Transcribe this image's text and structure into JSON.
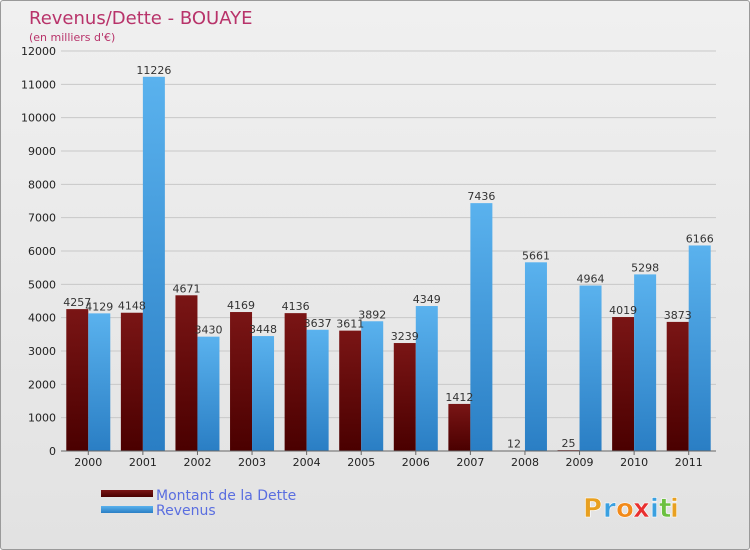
{
  "chart_data": {
    "type": "bar",
    "title": "Revenus/Dette - BOUAYE",
    "subtitle": "(en milliers d'€)",
    "categories": [
      "2000",
      "2001",
      "2002",
      "2003",
      "2004",
      "2005",
      "2006",
      "2007",
      "2008",
      "2009",
      "2010",
      "2011"
    ],
    "series": [
      {
        "name": "Montant de la Dette",
        "color": "#6a0a0a",
        "values": [
          4257,
          4148,
          4671,
          4169,
          4136,
          3611,
          3239,
          1412,
          12,
          25,
          4019,
          3873
        ],
        "labels": [
          "4257",
          "4148",
          "4671",
          "4169",
          "4136",
          "3611",
          "3239",
          "1412",
          "12",
          "25",
          "4019",
          "3873"
        ]
      },
      {
        "name": "Revenus",
        "color": "#3a98dc",
        "values": [
          4129,
          11226,
          3430,
          3448,
          3637,
          3892,
          4349,
          7436,
          5661,
          4964,
          5298,
          6166
        ],
        "labels": [
          "4129",
          "11226",
          "3430",
          "3448",
          "3637",
          "3892",
          "4349",
          "7436",
          "5661",
          "4964",
          "5298",
          "6166"
        ]
      }
    ],
    "ylim": [
      0,
      12000
    ],
    "yticks": [
      "0",
      "1000",
      "2000",
      "3000",
      "4000",
      "5000",
      "6000",
      "7000",
      "8000",
      "9000",
      "10000",
      "11000",
      "12000"
    ],
    "ytick_values": [
      0,
      1000,
      2000,
      3000,
      4000,
      5000,
      6000,
      7000,
      8000,
      9000,
      10000,
      11000,
      12000
    ],
    "grid": true,
    "legend": "bottom-left"
  },
  "branding": {
    "letters": [
      "P",
      "r",
      "o",
      "x",
      "i",
      "t",
      "i"
    ],
    "colors": [
      "#e8a020",
      "#3aa0e0",
      "#f28a1a",
      "#e83030",
      "#3aa0e0",
      "#6cc040",
      "#e8a020"
    ]
  }
}
